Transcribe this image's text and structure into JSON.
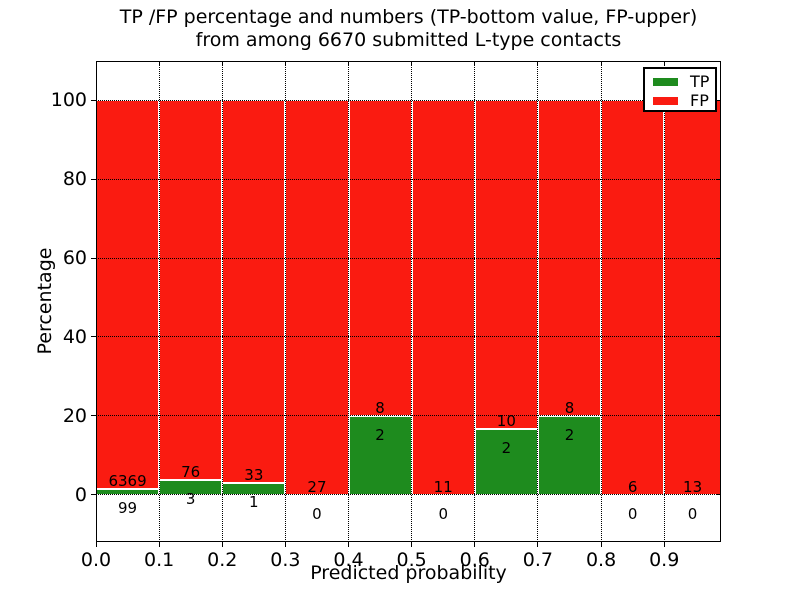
{
  "title": {
    "line1": "TP /FP percentage and numbers (TP-bottom value, FP-upper)",
    "line2": "from among 6670 submitted L-type contacts"
  },
  "axes": {
    "xlabel": "Predicted probability",
    "ylabel": "Percentage",
    "xtick_labels": [
      "0.0",
      "0.1",
      "0.2",
      "0.3",
      "0.4",
      "0.5",
      "0.6",
      "0.7",
      "0.8",
      "0.9"
    ],
    "xtick_values": [
      0.0,
      0.1,
      0.2,
      0.3,
      0.4,
      0.5,
      0.6,
      0.7,
      0.8,
      0.9
    ],
    "ytick_labels": [
      "0",
      "20",
      "40",
      "60",
      "80",
      "100"
    ],
    "ytick_values": [
      0,
      20,
      40,
      60,
      80,
      100
    ]
  },
  "legend": {
    "items": [
      {
        "label": "TP",
        "color": "#1e8b1e"
      },
      {
        "label": "FP",
        "color": "#fa1b11"
      }
    ],
    "position": "upper right"
  },
  "colors": {
    "tp_green": "#1e8b1e",
    "fp_red": "#fa1b11",
    "bar_edge": "#ffffff",
    "grid": "#000000",
    "background": "#ffffff"
  },
  "chart_data": {
    "type": "bar",
    "stacked": true,
    "percentage_stack_total": 100,
    "title": "TP /FP percentage and numbers (TP-bottom value, FP-upper) from among 6670 submitted L-type contacts",
    "xlabel": "Predicted probability",
    "ylabel": "Percentage",
    "xlim": [
      0,
      0.99
    ],
    "ylim": [
      -12,
      110
    ],
    "grid": "dotted, both axes",
    "legend_position": "upper right",
    "total_submitted_contacts": 6670,
    "categories": [
      "0.0-0.1",
      "0.1-0.2",
      "0.2-0.3",
      "0.3-0.4",
      "0.4-0.5",
      "0.5-0.6",
      "0.6-0.7",
      "0.7-0.8",
      "0.8-0.9",
      "0.9-1.0"
    ],
    "bins": [
      {
        "x0": 0.0,
        "x1": 0.1,
        "tp": 99,
        "fp": 6369
      },
      {
        "x0": 0.1,
        "x1": 0.2,
        "tp": 3,
        "fp": 76
      },
      {
        "x0": 0.2,
        "x1": 0.3,
        "tp": 1,
        "fp": 33
      },
      {
        "x0": 0.3,
        "x1": 0.4,
        "tp": 0,
        "fp": 27
      },
      {
        "x0": 0.4,
        "x1": 0.5,
        "tp": 2,
        "fp": 8
      },
      {
        "x0": 0.5,
        "x1": 0.6,
        "tp": 0,
        "fp": 11
      },
      {
        "x0": 0.6,
        "x1": 0.7,
        "tp": 2,
        "fp": 10
      },
      {
        "x0": 0.7,
        "x1": 0.8,
        "tp": 2,
        "fp": 8
      },
      {
        "x0": 0.8,
        "x1": 0.9,
        "tp": 0,
        "fp": 6
      },
      {
        "x0": 0.9,
        "x1": 1.0,
        "tp": 0,
        "fp": 13
      }
    ],
    "series": [
      {
        "name": "TP",
        "color": "#1e8b1e",
        "values": [
          99,
          3,
          1,
          0,
          2,
          0,
          2,
          2,
          0,
          0
        ],
        "percent_of_bin": [
          1.53,
          3.8,
          2.94,
          0.0,
          20.0,
          0.0,
          16.67,
          20.0,
          0.0,
          0.0
        ]
      },
      {
        "name": "FP",
        "color": "#fa1b11",
        "values": [
          6369,
          76,
          33,
          27,
          8,
          11,
          10,
          8,
          6,
          13
        ],
        "percent_of_bin": [
          98.47,
          96.2,
          97.06,
          100.0,
          80.0,
          100.0,
          83.33,
          80.0,
          100.0,
          100.0
        ]
      }
    ]
  }
}
